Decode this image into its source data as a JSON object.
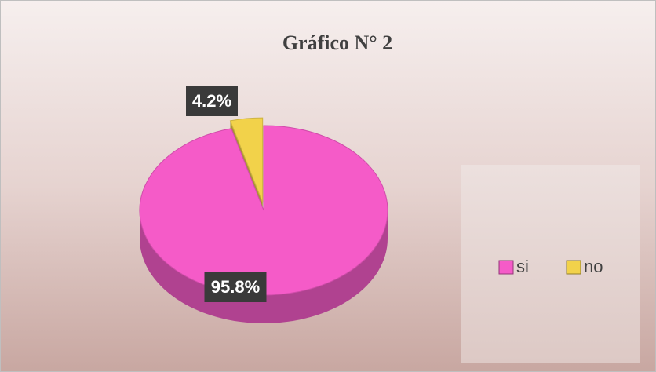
{
  "chart_data": {
    "type": "pie",
    "title": "Gráfico N° 2",
    "series": [
      {
        "name": "si",
        "color": "#f55bc8",
        "values": [
          95.8
        ],
        "value_labels": [
          "95.8%"
        ]
      },
      {
        "name": "no",
        "color": "#f2d24a",
        "values": [
          4.2
        ],
        "value_labels": [
          "4.2%"
        ]
      }
    ],
    "legend": "right"
  }
}
